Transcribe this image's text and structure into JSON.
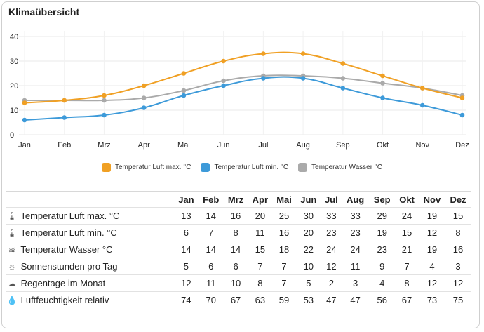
{
  "title": "Klimaübersicht",
  "chart_data": {
    "type": "line",
    "categories": [
      "Jan",
      "Feb",
      "Mrz",
      "Apr",
      "Mai",
      "Jun",
      "Jul",
      "Aug",
      "Sep",
      "Okt",
      "Nov",
      "Dez"
    ],
    "series": [
      {
        "name": "Temperatur Luft max. °C",
        "color": "#f0a024",
        "values": [
          13,
          14,
          16,
          20,
          25,
          30,
          33,
          33,
          29,
          24,
          19,
          15
        ]
      },
      {
        "name": "Temperatur Luft min. °C",
        "color": "#3d9ad9",
        "values": [
          6,
          7,
          8,
          11,
          16,
          20,
          23,
          23,
          19,
          15,
          12,
          8
        ]
      },
      {
        "name": "Temperatur Wasser °C",
        "color": "#aaaaaa",
        "values": [
          14,
          14,
          14,
          15,
          18,
          22,
          24,
          24,
          23,
          21,
          19,
          16
        ]
      }
    ],
    "yticks": [
      0,
      10,
      20,
      30,
      40
    ],
    "ylim": [
      0,
      40
    ],
    "grid": true,
    "legend": "bottom"
  },
  "table": {
    "headers": [
      "Jan",
      "Feb",
      "Mrz",
      "Apr",
      "Mai",
      "Jun",
      "Jul",
      "Aug",
      "Sep",
      "Okt",
      "Nov",
      "Dez"
    ],
    "rows": [
      {
        "icon": "thermometer-icon",
        "glyph": "🌡",
        "label": "Temperatur Luft max. °C",
        "values": [
          "13",
          "14",
          "16",
          "20",
          "25",
          "30",
          "33",
          "33",
          "29",
          "24",
          "19",
          "15"
        ]
      },
      {
        "icon": "thermometer-icon",
        "glyph": "🌡",
        "label": "Temperatur Luft min. °C",
        "values": [
          "6",
          "7",
          "8",
          "11",
          "16",
          "20",
          "23",
          "23",
          "19",
          "15",
          "12",
          "8"
        ]
      },
      {
        "icon": "water-icon",
        "glyph": "≋",
        "label": "Temperatur Wasser °C",
        "values": [
          "14",
          "14",
          "14",
          "15",
          "18",
          "22",
          "24",
          "24",
          "23",
          "21",
          "19",
          "16"
        ]
      },
      {
        "icon": "sun-icon",
        "glyph": "☼",
        "label": "Sonnenstunden pro Tag",
        "values": [
          "5",
          "6",
          "6",
          "7",
          "7",
          "10",
          "12",
          "11",
          "9",
          "7",
          "4",
          "3"
        ]
      },
      {
        "icon": "rain-cloud-icon",
        "glyph": "☁",
        "label": "Regentage im Monat",
        "values": [
          "12",
          "11",
          "10",
          "8",
          "7",
          "5",
          "2",
          "3",
          "4",
          "8",
          "12",
          "12"
        ]
      },
      {
        "icon": "humidity-drop-icon",
        "glyph": "💧",
        "label": "Luftfeuchtigkeit relativ",
        "values": [
          "74",
          "70",
          "67",
          "63",
          "59",
          "53",
          "47",
          "47",
          "56",
          "67",
          "73",
          "75"
        ]
      }
    ]
  }
}
